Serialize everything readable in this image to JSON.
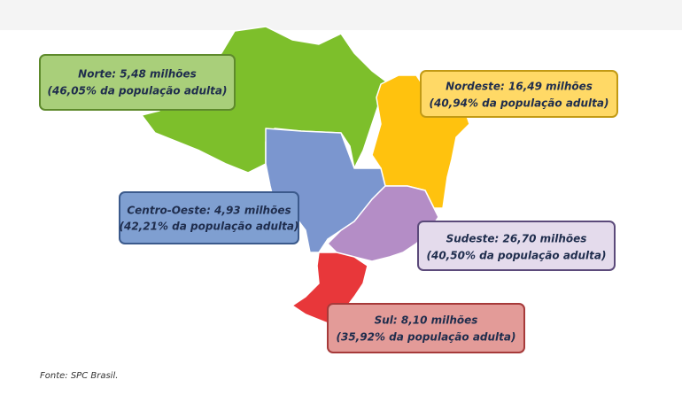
{
  "regions": [
    {
      "label": "Norte: 5,48 milhões",
      "share": "(46,05% da população adulta)"
    },
    {
      "label": "Nordeste: 16,49 milhões",
      "share": "(40,94% da população adulta)"
    },
    {
      "label": "Centro-Oeste: 4,93 milhões",
      "share": "(42,21% da população adulta)"
    },
    {
      "label": "Sudeste: 26,70 milhões",
      "share": "(40,50% da população adulta)"
    },
    {
      "label": "Sul: 8,10 milhões",
      "share": "(35,92% da população adulta)"
    }
  ],
  "source": "Fonte: SPC Brasil."
}
